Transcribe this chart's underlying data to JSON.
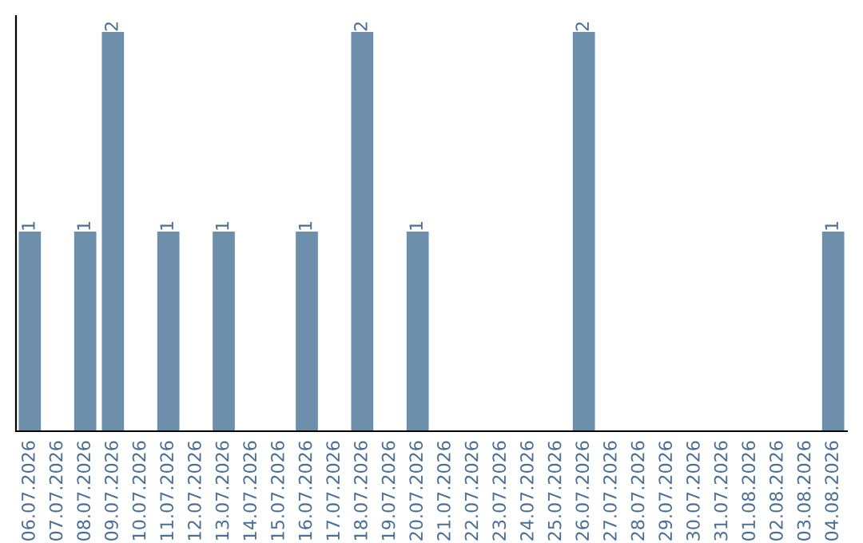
{
  "chart_data": {
    "type": "bar",
    "categories": [
      "06.07.2026",
      "07.07.2026",
      "08.07.2026",
      "09.07.2026",
      "10.07.2026",
      "11.07.2026",
      "12.07.2026",
      "13.07.2026",
      "14.07.2026",
      "15.07.2026",
      "16.07.2026",
      "17.07.2026",
      "18.07.2026",
      "19.07.2026",
      "20.07.2026",
      "21.07.2026",
      "22.07.2026",
      "23.07.2026",
      "24.07.2026",
      "25.07.2026",
      "26.07.2026",
      "27.07.2026",
      "28.07.2026",
      "29.07.2026",
      "30.07.2026",
      "31.07.2026",
      "01.08.2026",
      "02.08.2026",
      "03.08.2026",
      "04.08.2026"
    ],
    "values": [
      1,
      0,
      1,
      2,
      0,
      1,
      0,
      1,
      0,
      0,
      1,
      0,
      2,
      0,
      1,
      0,
      0,
      0,
      0,
      0,
      2,
      0,
      0,
      0,
      0,
      0,
      0,
      0,
      0,
      1
    ],
    "value_labels": [
      "1",
      null,
      "1",
      "2",
      null,
      "1",
      null,
      "1",
      null,
      null,
      "1",
      null,
      "2",
      null,
      "1",
      null,
      null,
      null,
      null,
      null,
      "2",
      null,
      null,
      null,
      null,
      null,
      null,
      null,
      null,
      "1"
    ],
    "color": "#6d8fac",
    "ylim": [
      0,
      2.08
    ],
    "grid": false,
    "legend": false
  }
}
